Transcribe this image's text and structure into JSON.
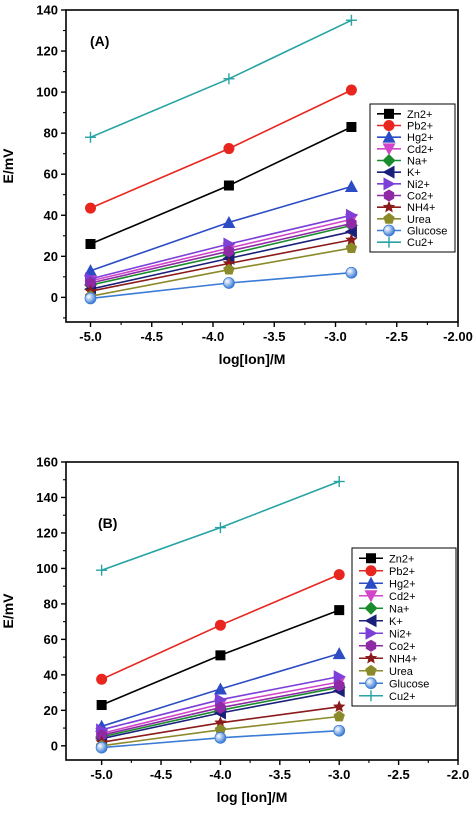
{
  "chart_data": [
    {
      "type": "line",
      "panel_label": "(A)",
      "xlabel": "log[Ion]/M",
      "ylabel": "E/mV",
      "xlim": [
        -5.2,
        -2.0
      ],
      "ylim": [
        -12,
        140
      ],
      "xticks": [
        -5.0,
        -4.5,
        -4.0,
        -3.5,
        -3.0,
        -2.5,
        -2.0
      ],
      "xtick_labels": [
        "-5.0",
        "-4.5",
        "-4.0",
        "-3.5",
        "-3.0",
        "-2.5",
        "-2.00"
      ],
      "yticks": [
        0,
        20,
        40,
        60,
        80,
        100,
        120,
        140
      ],
      "ytick_labels": [
        "0",
        "20",
        "40",
        "60",
        "80",
        "100",
        "120",
        "140"
      ],
      "legend_position": "right",
      "x": [
        -5.0,
        -3.87,
        -2.87
      ],
      "series": [
        {
          "name": "Zn2+",
          "color": "#000000",
          "marker": "square",
          "values": [
            26,
            54.5,
            83
          ]
        },
        {
          "name": "Pb2+",
          "color": "#e8251f",
          "marker": "circle",
          "values": [
            43.5,
            72.5,
            101
          ]
        },
        {
          "name": "Hg2+",
          "color": "#2b4cc4",
          "marker": "triangle-up",
          "values": [
            13,
            36.5,
            54
          ]
        },
        {
          "name": "Cd2+",
          "color": "#d146c9",
          "marker": "triangle-down",
          "values": [
            8,
            24,
            38
          ]
        },
        {
          "name": "Na+",
          "color": "#1a8c2e",
          "marker": "diamond",
          "values": [
            6,
            21,
            35
          ]
        },
        {
          "name": "K+",
          "color": "#1a1f7a",
          "marker": "triangle-left",
          "values": [
            4,
            19,
            32
          ]
        },
        {
          "name": "Ni2+",
          "color": "#7c3fd8",
          "marker": "triangle-right",
          "values": [
            9,
            26,
            40
          ]
        },
        {
          "name": "Co2+",
          "color": "#8f2aa6",
          "marker": "hexagon",
          "values": [
            7,
            22.5,
            36
          ]
        },
        {
          "name": "NH4+",
          "color": "#8b1a1a",
          "marker": "star",
          "values": [
            3,
            16.5,
            28
          ]
        },
        {
          "name": "Urea",
          "color": "#8a8a2a",
          "marker": "pentagon",
          "values": [
            0.5,
            13.5,
            24
          ]
        },
        {
          "name": "Glucose",
          "color": "#3a7bd5",
          "marker": "sphere",
          "values": [
            -0.5,
            7,
            12
          ]
        },
        {
          "name": "Cu2+",
          "color": "#27a3a3",
          "marker": "plus",
          "values": [
            78,
            106.5,
            135
          ]
        }
      ]
    },
    {
      "type": "line",
      "panel_label": "(B)",
      "xlabel": "log [Ion]/M",
      "ylabel": "E/mV",
      "xlim": [
        -5.3,
        -2.0
      ],
      "ylim": [
        -8,
        160
      ],
      "xticks": [
        -5.0,
        -4.5,
        -4.0,
        -3.5,
        -3.0,
        -2.5,
        -2.0
      ],
      "xtick_labels": [
        "-5.0",
        "-4.5",
        "-4.0",
        "-3.5",
        "-3.0",
        "-2.5",
        "-2.0"
      ],
      "yticks": [
        0,
        20,
        40,
        60,
        80,
        100,
        120,
        140,
        160
      ],
      "ytick_labels": [
        "0",
        "20",
        "40",
        "60",
        "80",
        "100",
        "120",
        "140",
        "160"
      ],
      "legend_position": "right",
      "x": [
        -5.0,
        -4.0,
        -3.0
      ],
      "series": [
        {
          "name": "Zn2+",
          "color": "#000000",
          "marker": "square",
          "values": [
            23,
            51,
            76.5
          ]
        },
        {
          "name": "Pb2+",
          "color": "#e8251f",
          "marker": "circle",
          "values": [
            37.5,
            68,
            96.5
          ]
        },
        {
          "name": "Hg2+",
          "color": "#2b4cc4",
          "marker": "triangle-up",
          "values": [
            11,
            32,
            52
          ]
        },
        {
          "name": "Cd2+",
          "color": "#d146c9",
          "marker": "triangle-down",
          "values": [
            7,
            23.5,
            36
          ]
        },
        {
          "name": "Na+",
          "color": "#1a8c2e",
          "marker": "diamond",
          "values": [
            5,
            20,
            33
          ]
        },
        {
          "name": "K+",
          "color": "#1a1f7a",
          "marker": "triangle-left",
          "values": [
            4,
            18.5,
            31
          ]
        },
        {
          "name": "Ni2+",
          "color": "#7c3fd8",
          "marker": "triangle-right",
          "values": [
            9,
            26,
            39
          ]
        },
        {
          "name": "Co2+",
          "color": "#8f2aa6",
          "marker": "hexagon",
          "values": [
            6,
            21.5,
            34
          ]
        },
        {
          "name": "NH4+",
          "color": "#8b1a1a",
          "marker": "star",
          "values": [
            2,
            13,
            22
          ]
        },
        {
          "name": "Urea",
          "color": "#8a8a2a",
          "marker": "pentagon",
          "values": [
            0,
            9,
            16.5
          ]
        },
        {
          "name": "Glucose",
          "color": "#3a7bd5",
          "marker": "sphere",
          "values": [
            -1,
            4.5,
            8.5
          ]
        },
        {
          "name": "Cu2+",
          "color": "#27a3a3",
          "marker": "plus",
          "values": [
            99,
            123,
            149
          ]
        }
      ]
    }
  ]
}
